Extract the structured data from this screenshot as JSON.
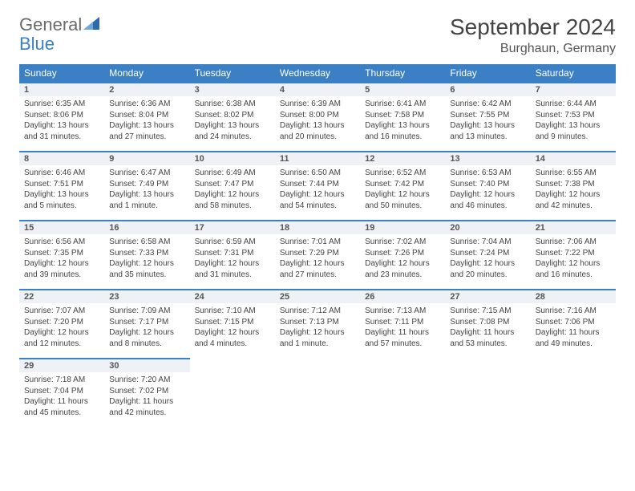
{
  "logo": {
    "general": "General",
    "blue": "Blue"
  },
  "header": {
    "month_title": "September 2024",
    "location": "Burghaun, Germany"
  },
  "colors": {
    "header_bg": "#3b7fc4",
    "header_text": "#ffffff",
    "daynum_bg": "#eef2f6",
    "border_top": "#3b7fc4",
    "body_text": "#444444",
    "page_bg": "#ffffff"
  },
  "day_names": [
    "Sunday",
    "Monday",
    "Tuesday",
    "Wednesday",
    "Thursday",
    "Friday",
    "Saturday"
  ],
  "days": {
    "1": {
      "sunrise": "Sunrise: 6:35 AM",
      "sunset": "Sunset: 8:06 PM",
      "daylight": "Daylight: 13 hours and 31 minutes."
    },
    "2": {
      "sunrise": "Sunrise: 6:36 AM",
      "sunset": "Sunset: 8:04 PM",
      "daylight": "Daylight: 13 hours and 27 minutes."
    },
    "3": {
      "sunrise": "Sunrise: 6:38 AM",
      "sunset": "Sunset: 8:02 PM",
      "daylight": "Daylight: 13 hours and 24 minutes."
    },
    "4": {
      "sunrise": "Sunrise: 6:39 AM",
      "sunset": "Sunset: 8:00 PM",
      "daylight": "Daylight: 13 hours and 20 minutes."
    },
    "5": {
      "sunrise": "Sunrise: 6:41 AM",
      "sunset": "Sunset: 7:58 PM",
      "daylight": "Daylight: 13 hours and 16 minutes."
    },
    "6": {
      "sunrise": "Sunrise: 6:42 AM",
      "sunset": "Sunset: 7:55 PM",
      "daylight": "Daylight: 13 hours and 13 minutes."
    },
    "7": {
      "sunrise": "Sunrise: 6:44 AM",
      "sunset": "Sunset: 7:53 PM",
      "daylight": "Daylight: 13 hours and 9 minutes."
    },
    "8": {
      "sunrise": "Sunrise: 6:46 AM",
      "sunset": "Sunset: 7:51 PM",
      "daylight": "Daylight: 13 hours and 5 minutes."
    },
    "9": {
      "sunrise": "Sunrise: 6:47 AM",
      "sunset": "Sunset: 7:49 PM",
      "daylight": "Daylight: 13 hours and 1 minute."
    },
    "10": {
      "sunrise": "Sunrise: 6:49 AM",
      "sunset": "Sunset: 7:47 PM",
      "daylight": "Daylight: 12 hours and 58 minutes."
    },
    "11": {
      "sunrise": "Sunrise: 6:50 AM",
      "sunset": "Sunset: 7:44 PM",
      "daylight": "Daylight: 12 hours and 54 minutes."
    },
    "12": {
      "sunrise": "Sunrise: 6:52 AM",
      "sunset": "Sunset: 7:42 PM",
      "daylight": "Daylight: 12 hours and 50 minutes."
    },
    "13": {
      "sunrise": "Sunrise: 6:53 AM",
      "sunset": "Sunset: 7:40 PM",
      "daylight": "Daylight: 12 hours and 46 minutes."
    },
    "14": {
      "sunrise": "Sunrise: 6:55 AM",
      "sunset": "Sunset: 7:38 PM",
      "daylight": "Daylight: 12 hours and 42 minutes."
    },
    "15": {
      "sunrise": "Sunrise: 6:56 AM",
      "sunset": "Sunset: 7:35 PM",
      "daylight": "Daylight: 12 hours and 39 minutes."
    },
    "16": {
      "sunrise": "Sunrise: 6:58 AM",
      "sunset": "Sunset: 7:33 PM",
      "daylight": "Daylight: 12 hours and 35 minutes."
    },
    "17": {
      "sunrise": "Sunrise: 6:59 AM",
      "sunset": "Sunset: 7:31 PM",
      "daylight": "Daylight: 12 hours and 31 minutes."
    },
    "18": {
      "sunrise": "Sunrise: 7:01 AM",
      "sunset": "Sunset: 7:29 PM",
      "daylight": "Daylight: 12 hours and 27 minutes."
    },
    "19": {
      "sunrise": "Sunrise: 7:02 AM",
      "sunset": "Sunset: 7:26 PM",
      "daylight": "Daylight: 12 hours and 23 minutes."
    },
    "20": {
      "sunrise": "Sunrise: 7:04 AM",
      "sunset": "Sunset: 7:24 PM",
      "daylight": "Daylight: 12 hours and 20 minutes."
    },
    "21": {
      "sunrise": "Sunrise: 7:06 AM",
      "sunset": "Sunset: 7:22 PM",
      "daylight": "Daylight: 12 hours and 16 minutes."
    },
    "22": {
      "sunrise": "Sunrise: 7:07 AM",
      "sunset": "Sunset: 7:20 PM",
      "daylight": "Daylight: 12 hours and 12 minutes."
    },
    "23": {
      "sunrise": "Sunrise: 7:09 AM",
      "sunset": "Sunset: 7:17 PM",
      "daylight": "Daylight: 12 hours and 8 minutes."
    },
    "24": {
      "sunrise": "Sunrise: 7:10 AM",
      "sunset": "Sunset: 7:15 PM",
      "daylight": "Daylight: 12 hours and 4 minutes."
    },
    "25": {
      "sunrise": "Sunrise: 7:12 AM",
      "sunset": "Sunset: 7:13 PM",
      "daylight": "Daylight: 12 hours and 1 minute."
    },
    "26": {
      "sunrise": "Sunrise: 7:13 AM",
      "sunset": "Sunset: 7:11 PM",
      "daylight": "Daylight: 11 hours and 57 minutes."
    },
    "27": {
      "sunrise": "Sunrise: 7:15 AM",
      "sunset": "Sunset: 7:08 PM",
      "daylight": "Daylight: 11 hours and 53 minutes."
    },
    "28": {
      "sunrise": "Sunrise: 7:16 AM",
      "sunset": "Sunset: 7:06 PM",
      "daylight": "Daylight: 11 hours and 49 minutes."
    },
    "29": {
      "sunrise": "Sunrise: 7:18 AM",
      "sunset": "Sunset: 7:04 PM",
      "daylight": "Daylight: 11 hours and 45 minutes."
    },
    "30": {
      "sunrise": "Sunrise: 7:20 AM",
      "sunset": "Sunset: 7:02 PM",
      "daylight": "Daylight: 11 hours and 42 minutes."
    }
  },
  "calendar": {
    "first_weekday_index": 0,
    "num_days": 30,
    "num_weeks": 5
  }
}
